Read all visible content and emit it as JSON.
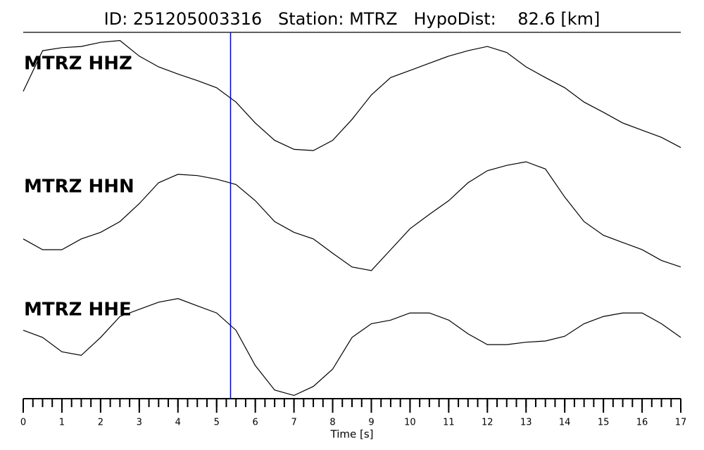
{
  "chart_data": {
    "type": "line",
    "title": "ID: 251205003316   Station: MTRZ   HypoDist:    82.6 [km]",
    "xlabel": "Time [s]",
    "xlim": [
      0,
      17
    ],
    "xticks": [
      0,
      1,
      2,
      3,
      4,
      5,
      6,
      7,
      8,
      9,
      10,
      11,
      12,
      13,
      14,
      15,
      16,
      17
    ],
    "minor_tick_step": 0.25,
    "ylim": [
      -1,
      1
    ],
    "pick_time": 5.36,
    "pick_color": "#0000cc",
    "label_color": "#4a9a0a",
    "x": [
      0,
      0.5,
      1,
      1.5,
      2,
      2.5,
      3,
      3.5,
      4,
      4.5,
      5,
      5.5,
      6,
      6.5,
      7,
      7.5,
      8,
      8.5,
      9,
      9.5,
      10,
      10.5,
      11,
      11.5,
      12,
      12.5,
      13,
      13.5,
      14,
      14.5,
      15,
      15.5,
      16,
      16.5,
      17
    ],
    "series": [
      {
        "name": "MTRZ HHZ",
        "color": "#000000",
        "values": [
          0.06,
          0.74,
          0.79,
          0.81,
          0.88,
          0.91,
          0.65,
          0.47,
          0.35,
          0.24,
          0.12,
          -0.12,
          -0.47,
          -0.76,
          -0.91,
          -0.93,
          -0.76,
          -0.41,
          0,
          0.29,
          0.41,
          0.53,
          0.65,
          0.74,
          0.81,
          0.71,
          0.47,
          0.29,
          0.12,
          -0.12,
          -0.29,
          -0.47,
          -0.59,
          -0.71,
          -0.88
        ]
      },
      {
        "name": "MTRZ HHN",
        "color": "#000000",
        "values": [
          -0.35,
          -0.53,
          -0.53,
          -0.35,
          -0.24,
          -0.06,
          0.24,
          0.59,
          0.73,
          0.71,
          0.65,
          0.56,
          0.29,
          -0.06,
          -0.24,
          -0.35,
          -0.59,
          -0.82,
          -0.88,
          -0.53,
          -0.18,
          0.06,
          0.29,
          0.59,
          0.79,
          0.88,
          0.94,
          0.82,
          0.35,
          -0.06,
          -0.29,
          -0.41,
          -0.53,
          -0.71,
          -0.82
        ]
      },
      {
        "name": "MTRZ HHE",
        "color": "#000000",
        "values": [
          0.18,
          0.06,
          -0.18,
          -0.24,
          0.06,
          0.41,
          0.53,
          0.65,
          0.71,
          0.59,
          0.47,
          0.18,
          -0.41,
          -0.82,
          -0.91,
          -0.76,
          -0.47,
          0.06,
          0.29,
          0.35,
          0.47,
          0.47,
          0.35,
          0.12,
          -0.06,
          -0.06,
          -0.02,
          0,
          0.08,
          0.29,
          0.41,
          0.47,
          0.47,
          0.29,
          0.06
        ]
      }
    ]
  }
}
